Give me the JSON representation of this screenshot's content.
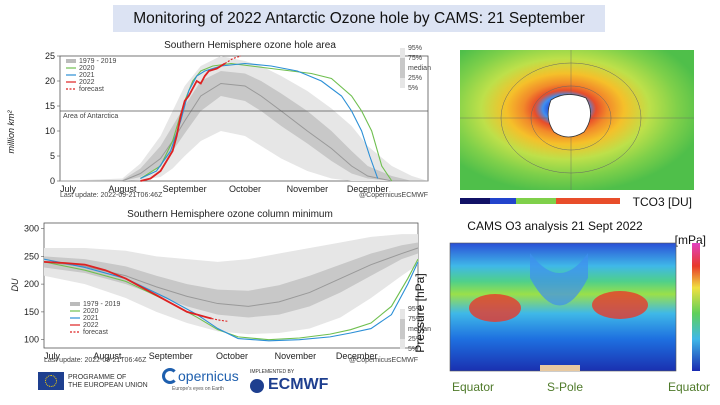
{
  "page_title": "Monitoring of 2022 Antarctic Ozone hole by CAMS: 21 September",
  "colors": {
    "c1979": "#bbbbbb",
    "c2020": "#6fbf4f",
    "c2021": "#2b8fd6",
    "c2022": "#dd2222",
    "forecast": "#dd2222"
  },
  "chart_data": [
    {
      "type": "line",
      "title": "Southern Hemisphere ozone hole area",
      "ylabel": "million km²",
      "ylim": [
        0,
        25
      ],
      "yticks": [
        0,
        5,
        10,
        15,
        20,
        25
      ],
      "xlim": [
        0,
        183
      ],
      "xticks": [
        {
          "label": "July",
          "x": 0
        },
        {
          "label": "August",
          "x": 31
        },
        {
          "label": "September",
          "x": 62
        },
        {
          "label": "October",
          "x": 92
        },
        {
          "label": "November",
          "x": 123
        },
        {
          "label": "December",
          "x": 153
        }
      ],
      "legend": [
        "1979 - 2019",
        "2020",
        "2021",
        "2022",
        "forecast"
      ],
      "legend_position": "top-left",
      "band_legend": [
        "95%",
        "75%",
        "median",
        "25%",
        "5%"
      ],
      "reference_line": {
        "label": "Area of Antarctica",
        "y": 14
      },
      "footer_left": "Last update: 2022-09-21T06:46Z",
      "footer_right": "@CopernicusECMWF",
      "envelope": {
        "x": [
          0,
          31,
          40,
          50,
          56,
          62,
          70,
          80,
          92,
          100,
          110,
          123,
          135,
          145,
          153,
          165,
          175,
          183
        ],
        "p5": [
          0,
          0,
          0.2,
          0.8,
          2.5,
          5,
          8,
          10,
          9,
          7,
          4.5,
          2,
          0.5,
          0,
          0,
          0,
          0,
          0
        ],
        "p25": [
          0,
          0,
          0.8,
          3,
          6,
          9.5,
          14,
          17,
          16,
          14,
          11,
          7.5,
          4,
          1.5,
          0.5,
          0,
          0,
          0
        ],
        "median": [
          0,
          0,
          1.5,
          4.5,
          8,
          12,
          17,
          19.5,
          19,
          17,
          14,
          10,
          6.5,
          3,
          1,
          0,
          0,
          0
        ],
        "p75": [
          0,
          0.2,
          2.5,
          7,
          11,
          15,
          20,
          22,
          21.5,
          20,
          17.5,
          14,
          10,
          6,
          3,
          1,
          0,
          0
        ],
        "p95": [
          0,
          0.5,
          3.5,
          9,
          14,
          19,
          23,
          25,
          24,
          23,
          21,
          18,
          14.5,
          11,
          7,
          3,
          1,
          0
        ]
      },
      "series": [
        {
          "name": "2020",
          "x": [
            40,
            50,
            56,
            62,
            66,
            70,
            76,
            85,
            95,
            105,
            115,
            125,
            135,
            145,
            150,
            155,
            160,
            165
          ],
          "values": [
            0.5,
            3,
            8,
            16,
            20,
            22,
            23,
            23.5,
            23,
            22.5,
            22,
            21.5,
            20.5,
            17,
            14,
            10,
            3,
            0
          ]
        },
        {
          "name": "2021",
          "x": [
            40,
            48,
            55,
            60,
            64,
            68,
            72,
            80,
            92,
            105,
            118,
            130,
            140,
            145,
            150,
            154,
            158
          ],
          "values": [
            0.5,
            2,
            6,
            12,
            18,
            21,
            22,
            23,
            23.5,
            23,
            22,
            20,
            17,
            14,
            10,
            5,
            0.5
          ]
        },
        {
          "name": "2022",
          "x": [
            40,
            45,
            50,
            53,
            56,
            58,
            60,
            62,
            64,
            66,
            68,
            70,
            72,
            74,
            78,
            80,
            82
          ],
          "values": [
            0,
            0.5,
            2,
            4,
            6,
            9,
            13,
            16,
            17,
            18.5,
            20,
            19.5,
            21,
            22,
            22.5,
            23,
            23.5
          ]
        },
        {
          "name": "forecast",
          "x": [
            82,
            86,
            90
          ],
          "values": [
            23.5,
            24.5,
            25
          ]
        }
      ]
    },
    {
      "type": "line",
      "title": "Southern Hemisphere ozone column minimum",
      "ylabel": "DU",
      "ylim": [
        85,
        310
      ],
      "yticks": [
        100,
        150,
        200,
        250,
        300
      ],
      "xlim": [
        0,
        183
      ],
      "xticks": [
        {
          "label": "July",
          "x": 0
        },
        {
          "label": "August",
          "x": 31
        },
        {
          "label": "September",
          "x": 62
        },
        {
          "label": "October",
          "x": 92
        },
        {
          "label": "November",
          "x": 123
        },
        {
          "label": "December",
          "x": 153
        }
      ],
      "legend": [
        "1979 - 2019",
        "2020",
        "2021",
        "2022",
        "forecast"
      ],
      "legend_position": "bottom-left",
      "band_legend": [
        "95%",
        "75%",
        "median",
        "25%",
        "5%"
      ],
      "footer_left": "Last update: 2022-09-21T06:46Z",
      "footer_right": "@CopernicusECMWF",
      "envelope": {
        "x": [
          0,
          20,
          40,
          55,
          70,
          85,
          100,
          115,
          130,
          145,
          160,
          175,
          183
        ],
        "p5": [
          215,
          200,
          175,
          150,
          130,
          115,
          110,
          112,
          120,
          140,
          175,
          215,
          235
        ],
        "p25": [
          230,
          220,
          200,
          180,
          160,
          145,
          140,
          145,
          160,
          185,
          215,
          245,
          255
        ],
        "median": [
          240,
          232,
          215,
          195,
          178,
          165,
          160,
          168,
          185,
          210,
          235,
          255,
          265
        ],
        "p75": [
          250,
          245,
          232,
          215,
          200,
          190,
          188,
          198,
          215,
          235,
          255,
          270,
          275
        ],
        "p95": [
          265,
          265,
          260,
          250,
          245,
          240,
          245,
          255,
          265,
          275,
          285,
          290,
          290
        ]
      },
      "series": [
        {
          "name": "2020",
          "x": [
            0,
            20,
            40,
            60,
            75,
            85,
            95,
            110,
            125,
            140,
            150,
            160,
            170,
            178,
            183
          ],
          "values": [
            240,
            225,
            205,
            170,
            140,
            118,
            105,
            100,
            103,
            110,
            118,
            130,
            160,
            210,
            245
          ]
        },
        {
          "name": "2021",
          "x": [
            0,
            20,
            40,
            60,
            75,
            85,
            95,
            110,
            125,
            140,
            150,
            160,
            170,
            178,
            183
          ],
          "values": [
            245,
            230,
            210,
            175,
            145,
            120,
            102,
            98,
            100,
            105,
            112,
            120,
            145,
            200,
            240
          ]
        },
        {
          "name": "2022",
          "x": [
            0,
            10,
            20,
            30,
            40,
            50,
            55,
            60,
            65,
            70,
            75,
            80,
            82
          ],
          "values": [
            240,
            238,
            235,
            225,
            210,
            190,
            180,
            170,
            160,
            150,
            145,
            140,
            138
          ]
        },
        {
          "name": "forecast",
          "x": [
            82,
            86,
            90
          ],
          "values": [
            138,
            135,
            133
          ]
        }
      ]
    }
  ],
  "ozone_map": {
    "label": "TCO3 [DU]"
  },
  "cross_section": {
    "title": "CAMS O3 analysis 21 Sept 2022",
    "ylabel": "Pressure [hPa]",
    "colorbar_unit": "[mPa]",
    "x_labels": [
      "Equator",
      "S-Pole",
      "Equator"
    ]
  },
  "footer": {
    "eu_label_line1": "PROGRAMME OF",
    "eu_label_line2": "THE EUROPEAN UNION",
    "copernicus": "opernicus",
    "copernicus_sub": "Europe's eyes on Earth",
    "implemented_by": "IMPLEMENTED BY",
    "ecmwf": "ECMWF"
  }
}
